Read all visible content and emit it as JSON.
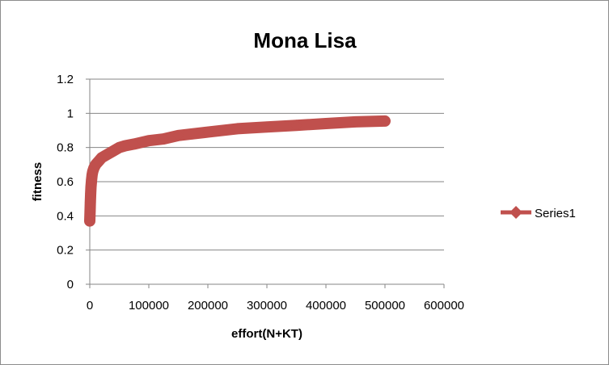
{
  "chart_data": {
    "type": "line",
    "title": "Mona Lisa",
    "xlabel": "effort(N+KT)",
    "ylabel": "fitness",
    "xlim": [
      0,
      600000
    ],
    "ylim": [
      0,
      1.2
    ],
    "x_ticks": [
      "0",
      "100000",
      "200000",
      "300000",
      "400000",
      "500000",
      "600000"
    ],
    "y_ticks": [
      "0",
      "0.2",
      "0.4",
      "0.6",
      "0.8",
      "1",
      "1.2"
    ],
    "grid": "horizontal major gridlines",
    "legend_position": "right",
    "colors": {
      "series": "#c0504d",
      "grid": "#868686",
      "axis": "#868686"
    },
    "marker": "diamond",
    "series": [
      {
        "name": "Series1",
        "x": [
          0,
          500,
          1000,
          1500,
          2000,
          3000,
          4000,
          5000,
          7000,
          10000,
          15000,
          20000,
          30000,
          40000,
          50000,
          60000,
          75000,
          100000,
          125000,
          150000,
          175000,
          200000,
          250000,
          300000,
          350000,
          400000,
          450000,
          500000
        ],
        "y": [
          0.37,
          0.43,
          0.48,
          0.53,
          0.57,
          0.61,
          0.64,
          0.66,
          0.68,
          0.7,
          0.72,
          0.74,
          0.76,
          0.78,
          0.8,
          0.81,
          0.82,
          0.84,
          0.85,
          0.87,
          0.88,
          0.89,
          0.91,
          0.92,
          0.93,
          0.94,
          0.95,
          0.955
        ]
      }
    ]
  }
}
